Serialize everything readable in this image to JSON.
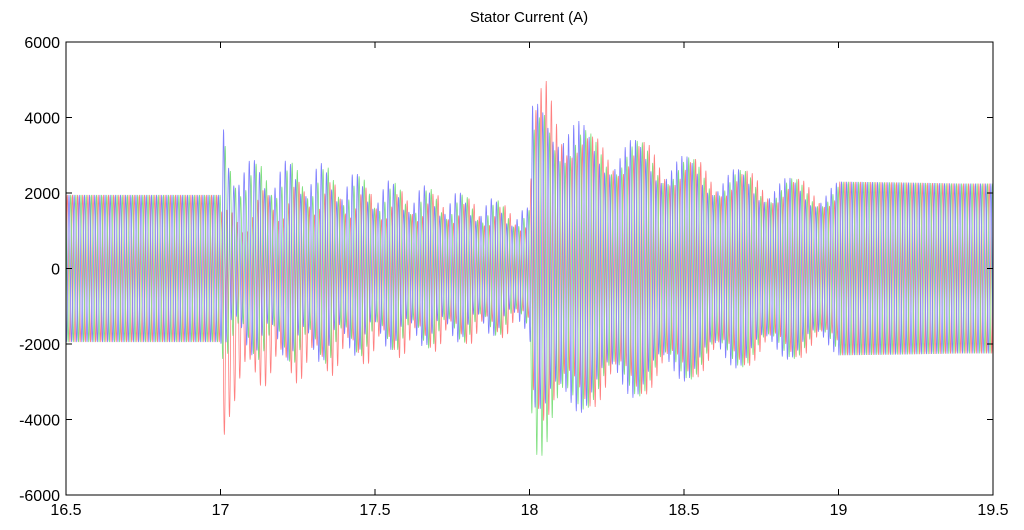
{
  "chart_data": {
    "type": "line",
    "title": "Stator Current (A)",
    "xlabel": "",
    "ylabel": "",
    "xlim": [
      16.5,
      19.5
    ],
    "ylim": [
      -6000,
      6000
    ],
    "x_ticks": [
      16.5,
      17,
      17.5,
      18,
      18.5,
      19,
      19.5
    ],
    "x_tick_labels": [
      "16.5",
      "17",
      "17.5",
      "18",
      "18.5",
      "19",
      "19.5"
    ],
    "y_ticks": [
      -6000,
      -4000,
      -2000,
      0,
      2000,
      4000,
      6000
    ],
    "y_tick_labels": [
      "-6000",
      "-4000",
      "-2000",
      "0",
      "2000",
      "4000",
      "6000"
    ],
    "grid": false,
    "legend": "none",
    "signal_frequency_hz": 60,
    "series": [
      {
        "color": "#ff8080",
        "phase_deg": 0,
        "envelope": {
          "t": [
            16.5,
            17.0,
            17.01,
            17.03,
            17.1,
            17.3,
            17.5,
            17.7,
            17.9,
            18.0,
            18.01,
            18.05,
            18.1,
            18.2,
            18.3,
            18.4,
            18.5,
            18.6,
            18.7,
            18.8,
            18.9,
            19.0,
            19.2,
            19.4,
            19.5
          ],
          "amplitude": [
            1950,
            1950,
            3200,
            2700,
            2600,
            2700,
            2300,
            2100,
            1800,
            1600,
            3800,
            4600,
            4200,
            3600,
            3500,
            3300,
            3000,
            2750,
            2600,
            2450,
            2350,
            2300,
            2280,
            2250,
            2250
          ],
          "offset": [
            0,
            0,
            -1500,
            -1200,
            -600,
            -300,
            -200,
            -100,
            -80,
            -50,
            300,
            500,
            200,
            -100,
            0,
            0,
            0,
            0,
            0,
            0,
            0,
            0,
            0,
            0,
            0
          ]
        }
      },
      {
        "color": "#80e080",
        "phase_deg": 120,
        "envelope": {
          "t": [
            16.5,
            17.0,
            17.01,
            17.03,
            17.1,
            17.3,
            17.5,
            17.7,
            17.9,
            18.0,
            18.01,
            18.05,
            18.1,
            18.2,
            18.3,
            18.4,
            18.5,
            18.6,
            18.7,
            18.8,
            18.9,
            19.0,
            19.2,
            19.4,
            19.5
          ],
          "amplitude": [
            1950,
            1950,
            3000,
            2600,
            2600,
            2700,
            2300,
            2100,
            1800,
            1600,
            4200,
            4800,
            4300,
            3600,
            3500,
            3300,
            3000,
            2750,
            2600,
            2450,
            2350,
            2300,
            2280,
            2250,
            2250
          ],
          "offset": [
            0,
            0,
            400,
            300,
            200,
            100,
            50,
            0,
            0,
            0,
            -600,
            -400,
            -200,
            0,
            0,
            0,
            0,
            0,
            0,
            0,
            0,
            0,
            0,
            0,
            0
          ]
        }
      },
      {
        "color": "#8080ff",
        "phase_deg": 240,
        "envelope": {
          "t": [
            16.5,
            17.0,
            17.01,
            17.03,
            17.1,
            17.3,
            17.5,
            17.7,
            17.9,
            18.0,
            18.01,
            18.05,
            18.1,
            18.2,
            18.3,
            18.4,
            18.5,
            18.6,
            18.7,
            18.8,
            18.9,
            19.0,
            19.2,
            19.4,
            19.5
          ],
          "amplitude": [
            1950,
            1950,
            3300,
            2700,
            2600,
            2700,
            2300,
            2100,
            1800,
            1600,
            4000,
            4600,
            4400,
            3600,
            3500,
            3300,
            3000,
            2750,
            2600,
            2450,
            2350,
            2300,
            2280,
            2250,
            2250
          ],
          "offset": [
            0,
            0,
            700,
            500,
            300,
            150,
            100,
            50,
            30,
            0,
            400,
            200,
            100,
            0,
            0,
            0,
            0,
            0,
            0,
            0,
            0,
            0,
            0,
            0,
            0
          ]
        }
      }
    ]
  }
}
